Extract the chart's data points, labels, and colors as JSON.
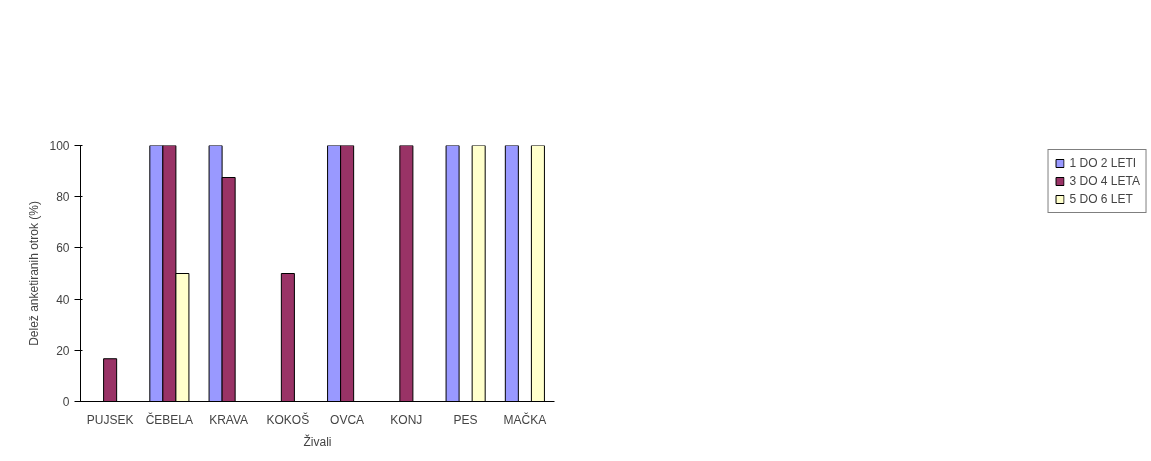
{
  "chart_data": {
    "type": "bar",
    "xlabel": "Živali",
    "ylabel": "Delež anketiranih otrok (%)",
    "categories": [
      "PUJSEK",
      "ČEBELA",
      "KRAVA",
      "KOKOŠ",
      "OVCA",
      "KONJ",
      "PES",
      "MAČKA"
    ],
    "series": [
      {
        "name": "1 DO 2 LETI",
        "color": "#9999ff",
        "values": [
          null,
          100,
          100,
          null,
          100,
          null,
          100,
          100
        ]
      },
      {
        "name": "3 DO 4 LETA",
        "color": "#993366",
        "values": [
          16.7,
          100,
          87.5,
          50,
          100,
          100,
          null,
          null
        ]
      },
      {
        "name": "5 DO 6 LET",
        "color": "#ffffcc",
        "values": [
          null,
          50,
          null,
          null,
          null,
          null,
          100,
          100
        ]
      }
    ],
    "ylim": [
      0,
      100
    ],
    "yticks": [
      0,
      20,
      40,
      60,
      80,
      100
    ],
    "grid": false,
    "legend": "top right"
  }
}
